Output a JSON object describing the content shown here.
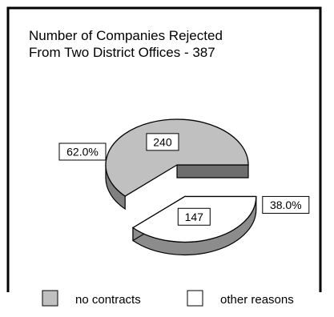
{
  "colors": {
    "no_contracts_top": "#c0c0c0",
    "no_contracts_side": "#808080",
    "no_contracts_flank": "#6e6e6e",
    "other_reasons_top": "#ffffff",
    "other_reasons_side": "#8c8c8c",
    "outline": "#000000"
  },
  "chart_data": {
    "type": "pie",
    "title_lines": [
      "Number of Companies Rejected",
      "From Two District Offices - 387"
    ],
    "total": 387,
    "slices": [
      {
        "label": "no contracts",
        "value": 240,
        "value_label": "240",
        "percent": 62.0,
        "percent_label": "62.0%",
        "exploded": false
      },
      {
        "label": "other reasons",
        "value": 147,
        "value_label": "147",
        "percent": 38.0,
        "percent_label": "38.0%",
        "exploded": true
      }
    ],
    "legend": {
      "position": "bottom",
      "items": [
        "no contracts",
        "other reasons"
      ]
    }
  }
}
